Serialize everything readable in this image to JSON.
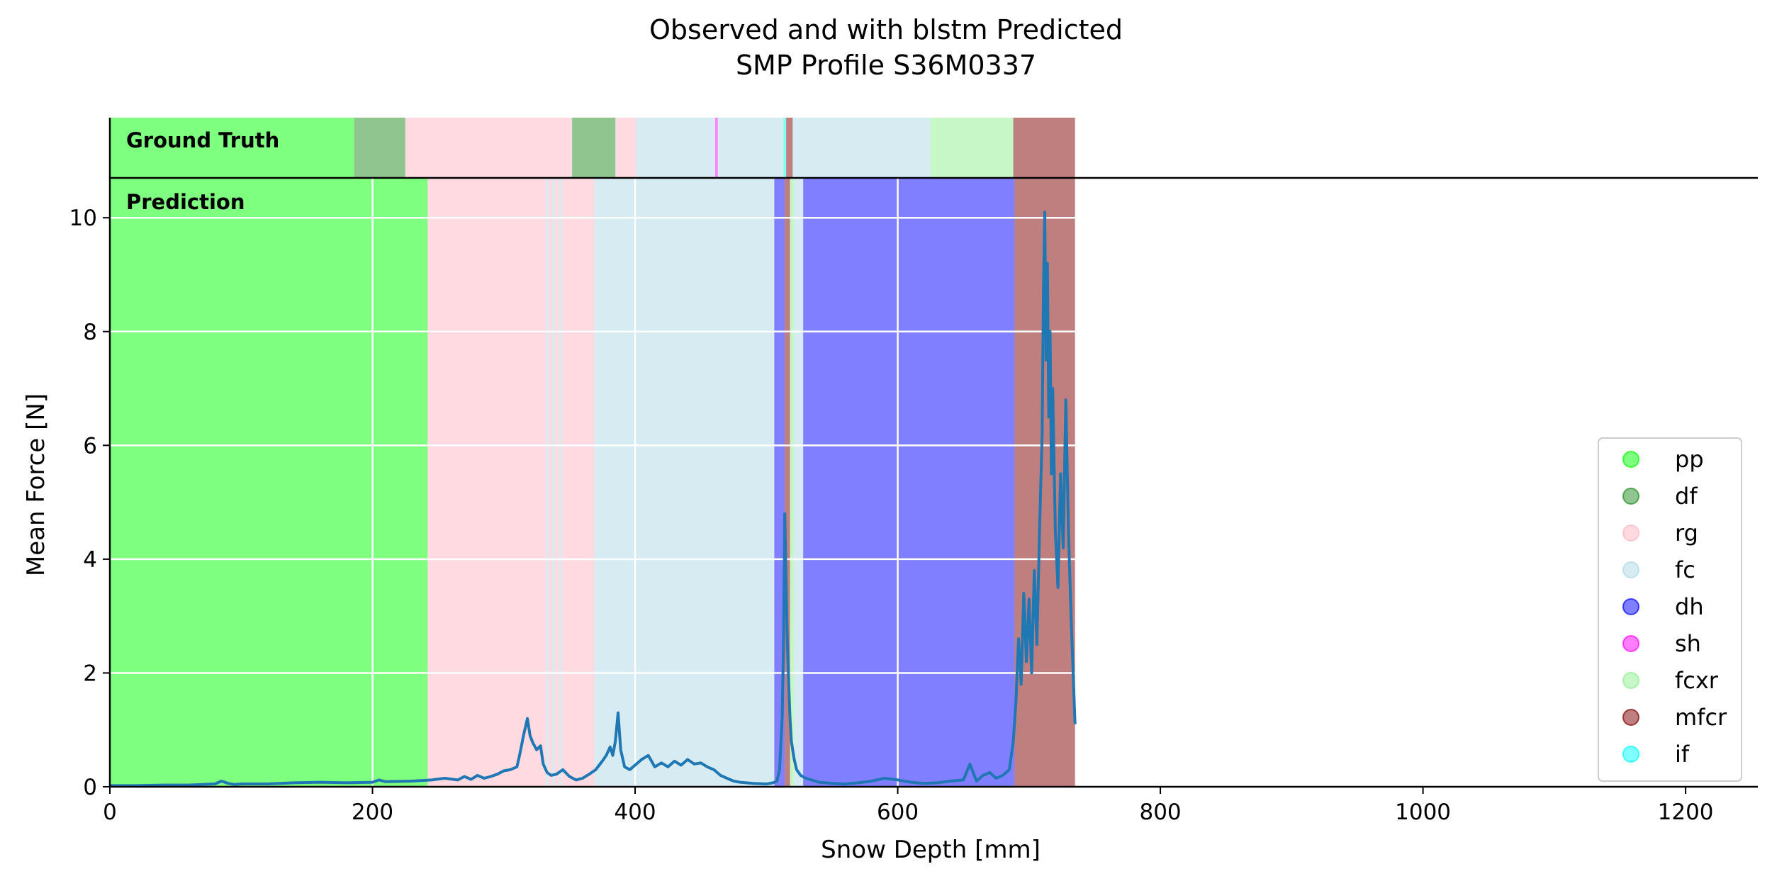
{
  "chart_data": {
    "type": "line",
    "title_line1": "Observed and with blstm Predicted",
    "title_line2": "SMP Profile S36M0337",
    "xlabel": "Snow Depth [mm]",
    "ylabel": "Mean Force [N]",
    "xlim": [
      0,
      1255
    ],
    "ylim": [
      0,
      10.7
    ],
    "xticks": [
      0,
      200,
      400,
      600,
      800,
      1000,
      1200
    ],
    "yticks": [
      0,
      2,
      4,
      6,
      8,
      10
    ],
    "grid": true,
    "legend_position": "lower-right",
    "ground_truth_label": "Ground Truth",
    "prediction_label": "Prediction",
    "classes": [
      {
        "name": "pp",
        "color": "#00ff00",
        "alpha": 0.5
      },
      {
        "name": "df",
        "color": "#228b22",
        "alpha": 0.5
      },
      {
        "name": "rg",
        "color": "#ffb6c1",
        "alpha": 0.5
      },
      {
        "name": "fc",
        "color": "#add8e6",
        "alpha": 0.5
      },
      {
        "name": "dh",
        "color": "#0000ff",
        "alpha": 0.5
      },
      {
        "name": "sh",
        "color": "#ff00ff",
        "alpha": 0.5
      },
      {
        "name": "fcxr",
        "color": "#90ee90",
        "alpha": 0.5
      },
      {
        "name": "mfcr",
        "color": "#800000",
        "alpha": 0.5
      },
      {
        "name": "if",
        "color": "#00ffff",
        "alpha": 0.5
      }
    ],
    "ground_truth_segments": [
      {
        "start": 0,
        "end": 186,
        "cls": "pp"
      },
      {
        "start": 186,
        "end": 225,
        "cls": "df"
      },
      {
        "start": 225,
        "end": 352,
        "cls": "rg"
      },
      {
        "start": 352,
        "end": 385,
        "cls": "df"
      },
      {
        "start": 385,
        "end": 401,
        "cls": "rg"
      },
      {
        "start": 401,
        "end": 461,
        "cls": "fc"
      },
      {
        "start": 461,
        "end": 463,
        "cls": "sh"
      },
      {
        "start": 463,
        "end": 513,
        "cls": "fc"
      },
      {
        "start": 513,
        "end": 515,
        "cls": "if"
      },
      {
        "start": 515,
        "end": 520,
        "cls": "mfcr"
      },
      {
        "start": 520,
        "end": 625,
        "cls": "fc"
      },
      {
        "start": 625,
        "end": 688,
        "cls": "fcxr"
      },
      {
        "start": 688,
        "end": 735,
        "cls": "mfcr"
      }
    ],
    "prediction_segments": [
      {
        "start": 0,
        "end": 242,
        "cls": "pp"
      },
      {
        "start": 242,
        "end": 332,
        "cls": "rg"
      },
      {
        "start": 332,
        "end": 334,
        "cls": "fc"
      },
      {
        "start": 334,
        "end": 337,
        "cls": "rg"
      },
      {
        "start": 337,
        "end": 339,
        "cls": "fc"
      },
      {
        "start": 339,
        "end": 342,
        "cls": "rg"
      },
      {
        "start": 342,
        "end": 344,
        "cls": "fc"
      },
      {
        "start": 344,
        "end": 369,
        "cls": "rg"
      },
      {
        "start": 369,
        "end": 506,
        "cls": "fc"
      },
      {
        "start": 506,
        "end": 514,
        "cls": "dh"
      },
      {
        "start": 514,
        "end": 518,
        "cls": "mfcr"
      },
      {
        "start": 518,
        "end": 521,
        "cls": "fcxr"
      },
      {
        "start": 521,
        "end": 528,
        "cls": "fc"
      },
      {
        "start": 528,
        "end": 689,
        "cls": "dh"
      },
      {
        "start": 689,
        "end": 735,
        "cls": "mfcr"
      }
    ],
    "series": [
      {
        "x": [
          0,
          20,
          40,
          60,
          80,
          85,
          90,
          95,
          100,
          120,
          140,
          160,
          180,
          200,
          205,
          210,
          230,
          245,
          255,
          265,
          270,
          275,
          280,
          285,
          290,
          295,
          300,
          305,
          310,
          312,
          315,
          318,
          320,
          322,
          325,
          328,
          330,
          333,
          336,
          340,
          345,
          350,
          355,
          360,
          365,
          370,
          375,
          378,
          381,
          383,
          385,
          387,
          389,
          392,
          396,
          400,
          405,
          410,
          415,
          420,
          425,
          430,
          435,
          440,
          445,
          450,
          455,
          460,
          465,
          470,
          475,
          480,
          490,
          500,
          505,
          508,
          510,
          512,
          513,
          514,
          515,
          516,
          517,
          518,
          519,
          521,
          523,
          526,
          530,
          540,
          550,
          560,
          570,
          580,
          590,
          600,
          610,
          620,
          630,
          640,
          650,
          655,
          660,
          665,
          670,
          675,
          680,
          685,
          688,
          690,
          692,
          694,
          696,
          698,
          700,
          702,
          704,
          706,
          708,
          710,
          711,
          712,
          713,
          714,
          715,
          716,
          717,
          718,
          720,
          722,
          724,
          726,
          728,
          730,
          732,
          735
        ],
        "y": [
          0.02,
          0.02,
          0.03,
          0.03,
          0.05,
          0.1,
          0.06,
          0.04,
          0.05,
          0.05,
          0.07,
          0.08,
          0.07,
          0.08,
          0.12,
          0.09,
          0.1,
          0.12,
          0.15,
          0.12,
          0.18,
          0.13,
          0.2,
          0.15,
          0.18,
          0.22,
          0.28,
          0.3,
          0.35,
          0.55,
          0.9,
          1.2,
          0.9,
          0.78,
          0.65,
          0.72,
          0.4,
          0.25,
          0.2,
          0.22,
          0.3,
          0.18,
          0.12,
          0.15,
          0.22,
          0.3,
          0.45,
          0.55,
          0.7,
          0.55,
          0.8,
          1.3,
          0.65,
          0.35,
          0.3,
          0.38,
          0.48,
          0.55,
          0.35,
          0.42,
          0.35,
          0.45,
          0.38,
          0.48,
          0.4,
          0.42,
          0.35,
          0.3,
          0.2,
          0.15,
          0.1,
          0.08,
          0.06,
          0.05,
          0.07,
          0.1,
          0.3,
          1.2,
          2.5,
          4.8,
          3.5,
          2.5,
          1.8,
          1.2,
          0.8,
          0.5,
          0.3,
          0.2,
          0.15,
          0.08,
          0.06,
          0.05,
          0.07,
          0.1,
          0.15,
          0.12,
          0.08,
          0.06,
          0.07,
          0.1,
          0.12,
          0.4,
          0.1,
          0.2,
          0.25,
          0.15,
          0.2,
          0.3,
          0.8,
          1.5,
          2.6,
          1.8,
          3.4,
          2.2,
          3.3,
          2.0,
          3.8,
          2.5,
          4.5,
          6.2,
          8.8,
          10.1,
          7.5,
          9.2,
          6.5,
          8.0,
          5.5,
          7.0,
          4.5,
          3.5,
          5.5,
          4.2,
          6.8,
          4.5,
          3.0,
          1.1
        ]
      }
    ]
  }
}
